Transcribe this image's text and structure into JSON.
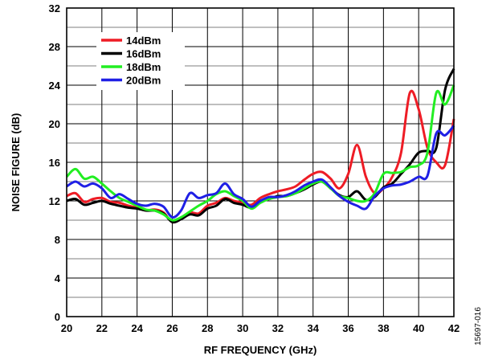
{
  "figure_id": "15697-016",
  "chart_data": {
    "type": "line",
    "title": "",
    "xlabel": "RF FREQUENCY (GHz)",
    "ylabel": "NOISE FIGURE (dB)",
    "xlim": [
      20,
      42
    ],
    "ylim": [
      0,
      32
    ],
    "x_ticks": [
      20,
      22,
      24,
      26,
      28,
      30,
      32,
      34,
      36,
      38,
      40,
      42
    ],
    "y_ticks": [
      0,
      4,
      8,
      12,
      16,
      20,
      24,
      28,
      32
    ],
    "grid": true,
    "legend_position": "top-left",
    "series": [
      {
        "name": "14dBm",
        "color": "#ee1c25",
        "x": [
          20,
          20.5,
          21,
          21.5,
          22,
          22.5,
          23,
          23.5,
          24,
          24.5,
          25,
          25.5,
          26,
          26.5,
          27,
          27.5,
          28,
          28.5,
          29,
          29.5,
          30,
          30.5,
          31,
          31.5,
          32,
          32.5,
          33,
          33.5,
          34,
          34.5,
          35,
          35.5,
          36,
          36.5,
          37,
          37.5,
          38,
          38.5,
          39,
          39.5,
          40,
          40.5,
          41,
          41.5,
          42
        ],
        "y": [
          12.5,
          12.8,
          11.9,
          12.2,
          12.3,
          11.9,
          11.8,
          11.5,
          11.3,
          11.0,
          11.1,
          10.8,
          9.8,
          10.2,
          10.8,
          10.7,
          11.5,
          11.8,
          12.3,
          12.0,
          11.8,
          11.6,
          12.3,
          12.7,
          13.0,
          13.2,
          13.5,
          14.2,
          14.8,
          15.0,
          14.3,
          13.3,
          14.8,
          17.8,
          14.5,
          12.8,
          13.3,
          14.5,
          17.0,
          23.2,
          21.5,
          17.5,
          16.0,
          15.7,
          20.5
        ]
      },
      {
        "name": "16dBm",
        "color": "#000000",
        "x": [
          20,
          20.5,
          21,
          21.5,
          22,
          22.5,
          23,
          23.5,
          24,
          24.5,
          25,
          25.5,
          26,
          26.5,
          27,
          27.5,
          28,
          28.5,
          29,
          29.5,
          30,
          30.5,
          31,
          31.5,
          32,
          32.5,
          33,
          33.5,
          34,
          34.5,
          35,
          35.5,
          36,
          36.5,
          37,
          37.5,
          38,
          38.5,
          39,
          39.5,
          40,
          40.5,
          41,
          41.5,
          42
        ],
        "y": [
          12.0,
          12.2,
          11.6,
          11.8,
          12.0,
          11.7,
          11.5,
          11.3,
          11.2,
          11.0,
          11.0,
          10.7,
          9.8,
          10.1,
          10.6,
          10.5,
          11.2,
          11.5,
          12.2,
          11.8,
          11.6,
          11.3,
          12.0,
          12.2,
          12.5,
          12.5,
          12.8,
          13.2,
          13.7,
          14.0,
          13.3,
          12.6,
          12.4,
          13.0,
          12.1,
          12.4,
          13.4,
          13.8,
          14.8,
          15.8,
          17.0,
          17.2,
          17.5,
          23.5,
          25.7
        ]
      },
      {
        "name": "18dBm",
        "color": "#22ee22",
        "x": [
          20,
          20.5,
          21,
          21.5,
          22,
          22.5,
          23,
          23.5,
          24,
          24.5,
          25,
          25.5,
          26,
          26.5,
          27,
          27.5,
          28,
          28.5,
          29,
          29.5,
          30,
          30.5,
          31,
          31.5,
          32,
          32.5,
          33,
          33.5,
          34,
          34.5,
          35,
          35.5,
          36,
          36.5,
          37,
          37.5,
          38,
          38.5,
          39,
          39.5,
          40,
          40.5,
          41,
          41.5,
          42
        ],
        "y": [
          14.5,
          15.3,
          14.3,
          14.5,
          13.8,
          13.0,
          12.3,
          11.9,
          11.5,
          11.1,
          11.0,
          10.6,
          10.0,
          10.3,
          10.9,
          11.5,
          12.0,
          12.7,
          13.0,
          12.5,
          12.0,
          11.2,
          11.8,
          12.2,
          12.4,
          12.5,
          12.8,
          13.3,
          13.8,
          14.0,
          13.3,
          12.5,
          12.3,
          12.0,
          12.0,
          12.8,
          14.8,
          14.9,
          15.0,
          15.5,
          15.7,
          17.0,
          23.2,
          22.0,
          24.0
        ]
      },
      {
        "name": "20dBm",
        "color": "#1f1fe5",
        "x": [
          20,
          20.5,
          21,
          21.5,
          22,
          22.5,
          23,
          23.5,
          24,
          24.5,
          25,
          25.5,
          26,
          26.5,
          27,
          27.5,
          28,
          28.5,
          29,
          29.5,
          30,
          30.5,
          31,
          31.5,
          32,
          32.5,
          33,
          33.5,
          34,
          34.5,
          35,
          35.5,
          36,
          36.5,
          37,
          37.5,
          38,
          38.5,
          39,
          39.5,
          40,
          40.5,
          41,
          41.5,
          42
        ],
        "y": [
          13.5,
          14.0,
          13.5,
          13.8,
          13.3,
          12.3,
          12.7,
          12.2,
          11.7,
          11.5,
          11.7,
          11.4,
          10.3,
          11.0,
          12.8,
          12.3,
          12.6,
          12.8,
          13.8,
          12.7,
          12.2,
          11.4,
          12.0,
          12.4,
          12.4,
          12.6,
          13.0,
          13.6,
          14.0,
          14.2,
          13.4,
          12.5,
          11.9,
          11.5,
          11.2,
          12.5,
          13.3,
          13.6,
          13.7,
          14.0,
          14.5,
          14.6,
          19.0,
          18.8,
          19.8
        ]
      }
    ]
  }
}
